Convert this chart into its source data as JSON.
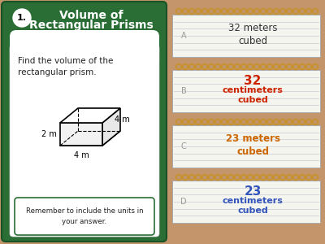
{
  "bg_color": "#c4956a",
  "card_bg": "#2a6e35",
  "card_inner_bg": "#ffffff",
  "title_text_line1": "Volume of",
  "title_text_line2": "Rectangular Prisms",
  "number": "1.",
  "question_text": "Find the volume of the\nrectangular prism.",
  "hint_text": "Remember to include the units in\nyour answer.",
  "options": [
    {
      "label": "A",
      "lines": [
        "32 meters",
        "cubed"
      ],
      "bold": false,
      "color": "#333333"
    },
    {
      "label": "B",
      "lines": [
        "32",
        "centimeters",
        "cubed"
      ],
      "bold": true,
      "color": "#cc2200"
    },
    {
      "label": "C",
      "lines": [
        "23 meters",
        "cubed"
      ],
      "bold": true,
      "color": "#cc6600"
    },
    {
      "label": "D",
      "lines": [
        "23",
        "centimeters",
        "cubed"
      ],
      "bold": true,
      "color": "#3355bb"
    }
  ],
  "notepad_bg": "#f5f5f0",
  "notepad_line_color": "#d0d0d8",
  "spiral_color": "#c8922a",
  "card_border": "#1a5228",
  "hint_border": "#2a6e35"
}
